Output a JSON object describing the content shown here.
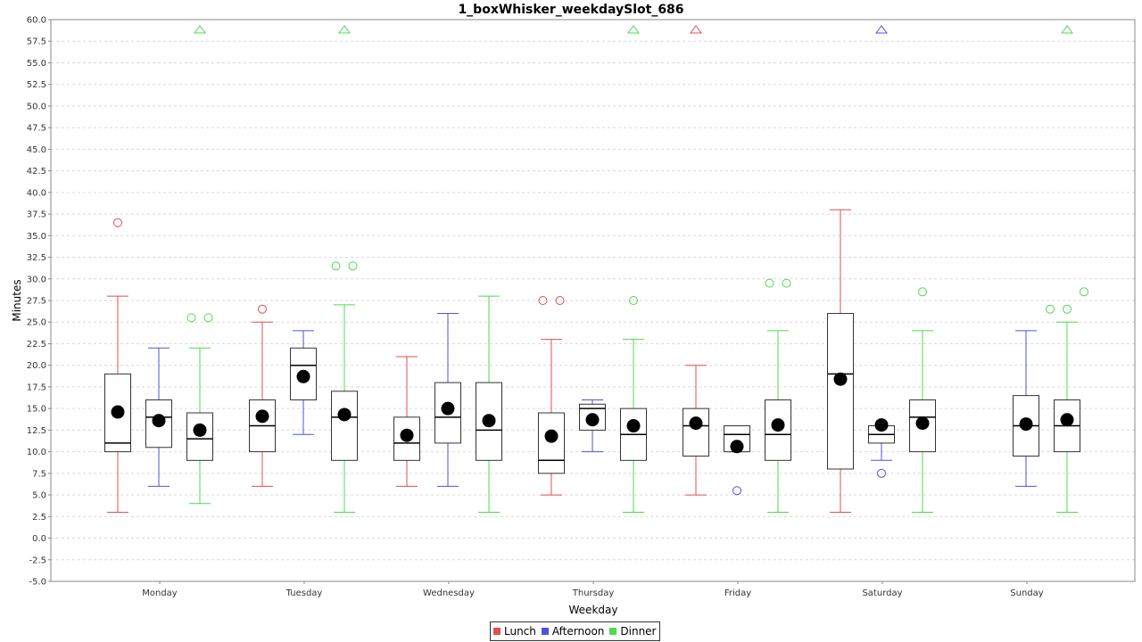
{
  "chart_data": {
    "type": "boxplot",
    "title": "1_boxWhisker_weekdaySlot_686",
    "xlabel": "Weekday",
    "ylabel": "Minutes",
    "ylim": [
      -5.0,
      60.0
    ],
    "ytick_step": 2.5,
    "grid": true,
    "legend_position": "bottom",
    "categories": [
      "Monday",
      "Tuesday",
      "Wednesday",
      "Thursday",
      "Friday",
      "Saturday",
      "Sunday"
    ],
    "series": [
      {
        "name": "Lunch",
        "color": "#e05050",
        "boxes": [
          {
            "category": "Monday",
            "whisker_low": 3.0,
            "q1": 10.0,
            "median": 11.0,
            "q3": 19.0,
            "whisker_high": 28.0,
            "mean": 14.6,
            "outliers": [
              36.5
            ],
            "far_out": false
          },
          {
            "category": "Tuesday",
            "whisker_low": 6.0,
            "q1": 10.0,
            "median": 13.0,
            "q3": 16.0,
            "whisker_high": 25.0,
            "mean": 14.1,
            "outliers": [
              26.5
            ],
            "far_out": false
          },
          {
            "category": "Wednesday",
            "whisker_low": 6.0,
            "q1": 9.0,
            "median": 11.0,
            "q3": 14.0,
            "whisker_high": 21.0,
            "mean": 11.9,
            "outliers": [],
            "far_out": false
          },
          {
            "category": "Thursday",
            "whisker_low": 5.0,
            "q1": 7.5,
            "median": 9.0,
            "q3": 14.5,
            "whisker_high": 23.0,
            "mean": 11.8,
            "outliers": [
              27.5,
              27.5
            ],
            "far_out": false
          },
          {
            "category": "Friday",
            "whisker_low": 5.0,
            "q1": 9.5,
            "median": 13.0,
            "q3": 15.0,
            "whisker_high": 20.0,
            "mean": 13.3,
            "outliers": [],
            "far_out": true
          },
          {
            "category": "Saturday",
            "whisker_low": 3.0,
            "q1": 8.0,
            "median": 19.0,
            "q3": 26.0,
            "whisker_high": 38.0,
            "mean": 18.4,
            "outliers": [],
            "far_out": false
          },
          null
        ]
      },
      {
        "name": "Afternoon",
        "color": "#5050e0",
        "boxes": [
          {
            "category": "Monday",
            "whisker_low": 6.0,
            "q1": 10.5,
            "median": 14.0,
            "q3": 16.0,
            "whisker_high": 22.0,
            "mean": 13.6,
            "outliers": [],
            "far_out": false
          },
          {
            "category": "Tuesday",
            "whisker_low": 12.0,
            "q1": 16.0,
            "median": 20.0,
            "q3": 22.0,
            "whisker_high": 24.0,
            "mean": 18.7,
            "outliers": [],
            "far_out": false
          },
          {
            "category": "Wednesday",
            "whisker_low": 6.0,
            "q1": 11.0,
            "median": 14.0,
            "q3": 18.0,
            "whisker_high": 26.0,
            "mean": 15.0,
            "outliers": [],
            "far_out": false
          },
          {
            "category": "Thursday",
            "whisker_low": 10.0,
            "q1": 12.5,
            "median": 15.0,
            "q3": 15.5,
            "whisker_high": 16.0,
            "mean": 13.7,
            "outliers": [],
            "far_out": false
          },
          {
            "category": "Friday",
            "whisker_low": 10.0,
            "q1": 10.0,
            "median": 12.0,
            "q3": 13.0,
            "whisker_high": 13.0,
            "mean": 10.6,
            "outliers": [
              5.5
            ],
            "far_out": false
          },
          {
            "category": "Saturday",
            "whisker_low": 9.0,
            "q1": 11.0,
            "median": 12.0,
            "q3": 13.0,
            "whisker_high": 13.0,
            "mean": 13.1,
            "outliers": [
              7.5
            ],
            "far_out": true
          },
          {
            "category": "Sunday",
            "whisker_low": 6.0,
            "q1": 9.5,
            "median": 13.0,
            "q3": 16.5,
            "whisker_high": 24.0,
            "mean": 13.2,
            "outliers": [],
            "far_out": false
          }
        ]
      },
      {
        "name": "Dinner",
        "color": "#50d850",
        "boxes": [
          {
            "category": "Monday",
            "whisker_low": 4.0,
            "q1": 9.0,
            "median": 11.5,
            "q3": 14.5,
            "whisker_high": 22.0,
            "mean": 12.5,
            "outliers": [
              25.5,
              25.5
            ],
            "far_out": true
          },
          {
            "category": "Tuesday",
            "whisker_low": 3.0,
            "q1": 9.0,
            "median": 14.0,
            "q3": 17.0,
            "whisker_high": 27.0,
            "mean": 14.3,
            "outliers": [
              31.5,
              31.5
            ],
            "far_out": true
          },
          {
            "category": "Wednesday",
            "whisker_low": 3.0,
            "q1": 9.0,
            "median": 12.5,
            "q3": 18.0,
            "whisker_high": 28.0,
            "mean": 13.6,
            "outliers": [],
            "far_out": false
          },
          {
            "category": "Thursday",
            "whisker_low": 3.0,
            "q1": 9.0,
            "median": 12.0,
            "q3": 15.0,
            "whisker_high": 23.0,
            "mean": 13.0,
            "outliers": [
              27.5
            ],
            "far_out": true
          },
          {
            "category": "Friday",
            "whisker_low": 3.0,
            "q1": 9.0,
            "median": 12.0,
            "q3": 16.0,
            "whisker_high": 24.0,
            "mean": 13.1,
            "outliers": [
              29.5,
              29.5
            ],
            "far_out": false
          },
          {
            "category": "Saturday",
            "whisker_low": 3.0,
            "q1": 10.0,
            "median": 14.0,
            "q3": 16.0,
            "whisker_high": 24.0,
            "mean": 13.3,
            "outliers": [
              28.5
            ],
            "far_out": false
          },
          {
            "category": "Sunday",
            "whisker_low": 3.0,
            "q1": 10.0,
            "median": 13.0,
            "q3": 16.0,
            "whisker_high": 25.0,
            "mean": 13.7,
            "outliers": [
              26.5,
              26.5,
              28.5
            ],
            "far_out": true
          }
        ]
      }
    ]
  }
}
